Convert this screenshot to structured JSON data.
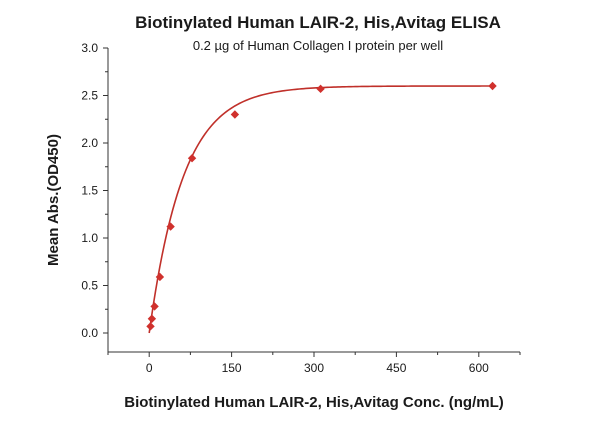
{
  "chart_data": {
    "type": "scatter",
    "title": "Biotinylated Human LAIR-2, His,Avitag ELISA",
    "subtitle": "0.2 µg of Human Collagen I protein per well",
    "xlabel": "Biotinylated Human LAIR-2, His,Avitag Conc. (ng/mL)",
    "ylabel": "Mean Abs.(OD450)",
    "xlim": [
      -75,
      675
    ],
    "ylim": [
      -0.2,
      3.0
    ],
    "x_ticks": [
      0,
      150,
      300,
      450,
      600
    ],
    "y_ticks": [
      0.0,
      0.5,
      1.0,
      1.5,
      2.0,
      2.5,
      3.0
    ],
    "x_tick_labels": [
      "0",
      "150",
      "300",
      "450",
      "600"
    ],
    "y_tick_labels": [
      "0.0",
      "0.5",
      "1.0",
      "1.5",
      "2.0",
      "2.5",
      "3.0"
    ],
    "grid": false,
    "legend": "none",
    "series": [
      {
        "marker": "diamond",
        "color": "#d0312d",
        "x": [
          2.4,
          4.9,
          9.8,
          19.5,
          39,
          78,
          156,
          312,
          625
        ],
        "y": [
          0.07,
          0.15,
          0.28,
          0.59,
          1.12,
          1.84,
          2.3,
          2.57,
          2.6
        ]
      }
    ],
    "fit_curve": {
      "type": "saturation",
      "color": "#c0302a",
      "max": 2.6,
      "k": 62,
      "x_range": [
        0,
        625
      ]
    }
  }
}
